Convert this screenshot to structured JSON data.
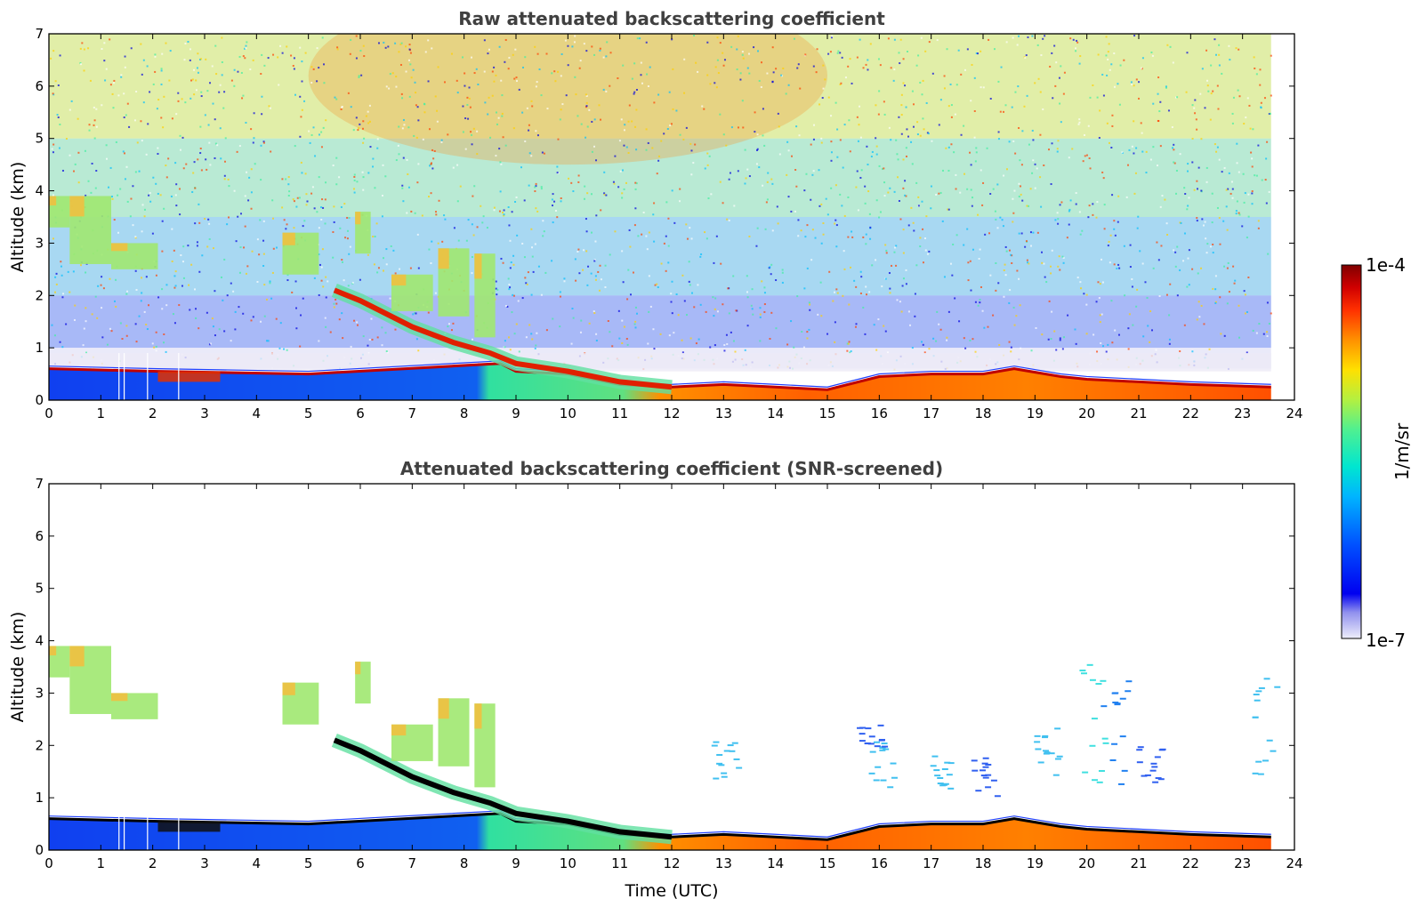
{
  "chart_data": [
    {
      "type": "heatmap",
      "title": "Raw attenuated backscattering coefficient",
      "xlabel": "",
      "ylabel": "Altitude (km)",
      "xlim": [
        0,
        24
      ],
      "ylim": [
        0,
        7
      ],
      "xticks": [
        "0",
        "1",
        "2",
        "3",
        "4",
        "5",
        "6",
        "7",
        "8",
        "9",
        "10",
        "11",
        "12",
        "13",
        "14",
        "15",
        "16",
        "17",
        "18",
        "19",
        "20",
        "21",
        "22",
        "23",
        "24"
      ],
      "yticks": [
        "0",
        "1",
        "2",
        "3",
        "4",
        "5",
        "6",
        "7"
      ],
      "data_end_time": 23.55,
      "features": {
        "boundary_layer_top_km": [
          [
            0,
            0.6
          ],
          [
            2.1,
            0.55
          ],
          [
            5,
            0.5
          ],
          [
            8.7,
            0.7
          ],
          [
            9,
            0.55
          ],
          [
            10,
            0.5
          ],
          [
            11,
            0.3
          ],
          [
            12,
            0.25
          ],
          [
            13,
            0.3
          ],
          [
            14,
            0.25
          ],
          [
            15,
            0.2
          ],
          [
            16,
            0.45
          ],
          [
            17,
            0.5
          ],
          [
            18,
            0.5
          ],
          [
            18.6,
            0.6
          ],
          [
            19.5,
            0.45
          ],
          [
            20,
            0.4
          ],
          [
            21,
            0.35
          ],
          [
            22,
            0.3
          ],
          [
            23.55,
            0.25
          ]
        ],
        "residual_layer_band_km": [
          [
            5.5,
            2.1
          ],
          [
            6,
            1.9
          ],
          [
            7,
            1.4
          ],
          [
            7.8,
            1.1
          ],
          [
            8.5,
            0.9
          ],
          [
            9,
            0.7
          ],
          [
            10,
            0.55
          ],
          [
            11,
            0.35
          ],
          [
            12,
            0.25
          ]
        ],
        "elevated_aerosol_blocks": [
          {
            "t0": 0.0,
            "t1": 0.4,
            "z0": 3.3,
            "z1": 3.9
          },
          {
            "t0": 0.4,
            "t1": 1.2,
            "z0": 2.6,
            "z1": 3.9
          },
          {
            "t0": 1.2,
            "t1": 2.1,
            "z0": 2.5,
            "z1": 3.0
          },
          {
            "t0": 4.5,
            "t1": 5.2,
            "z0": 2.4,
            "z1": 3.2
          },
          {
            "t0": 5.9,
            "t1": 6.2,
            "z0": 2.8,
            "z1": 3.6
          },
          {
            "t0": 6.6,
            "t1": 7.4,
            "z0": 1.7,
            "z1": 2.4
          },
          {
            "t0": 7.5,
            "t1": 8.1,
            "z0": 1.6,
            "z1": 2.9
          },
          {
            "t0": 8.2,
            "t1": 8.6,
            "z0": 1.2,
            "z1": 2.8
          }
        ]
      }
    },
    {
      "type": "heatmap",
      "title": "Attenuated backscattering coefficient (SNR-screened)",
      "xlabel": "Time (UTC)",
      "ylabel": "Altitude (km)",
      "xlim": [
        0,
        24
      ],
      "ylim": [
        0,
        7
      ],
      "xticks": [
        "0",
        "1",
        "2",
        "3",
        "4",
        "5",
        "6",
        "7",
        "8",
        "9",
        "10",
        "11",
        "12",
        "13",
        "14",
        "15",
        "16",
        "17",
        "18",
        "19",
        "20",
        "21",
        "22",
        "23",
        "24"
      ],
      "yticks": [
        "0",
        "1",
        "2",
        "3",
        "4",
        "5",
        "6",
        "7"
      ],
      "data_end_time": 23.55
    }
  ],
  "colorbar": {
    "label": "1/m/sr",
    "max_label": "1e-4",
    "min_label": "1e-7",
    "colors": [
      "#e8e8f8",
      "#b8b8f0",
      "#8080f0",
      "#0000f0",
      "#0040ff",
      "#0080ff",
      "#00c0ff",
      "#00e0d0",
      "#40f0a0",
      "#a0f060",
      "#e0f020",
      "#ffd000",
      "#ff9000",
      "#ff4000",
      "#e00000",
      "#800000"
    ]
  }
}
